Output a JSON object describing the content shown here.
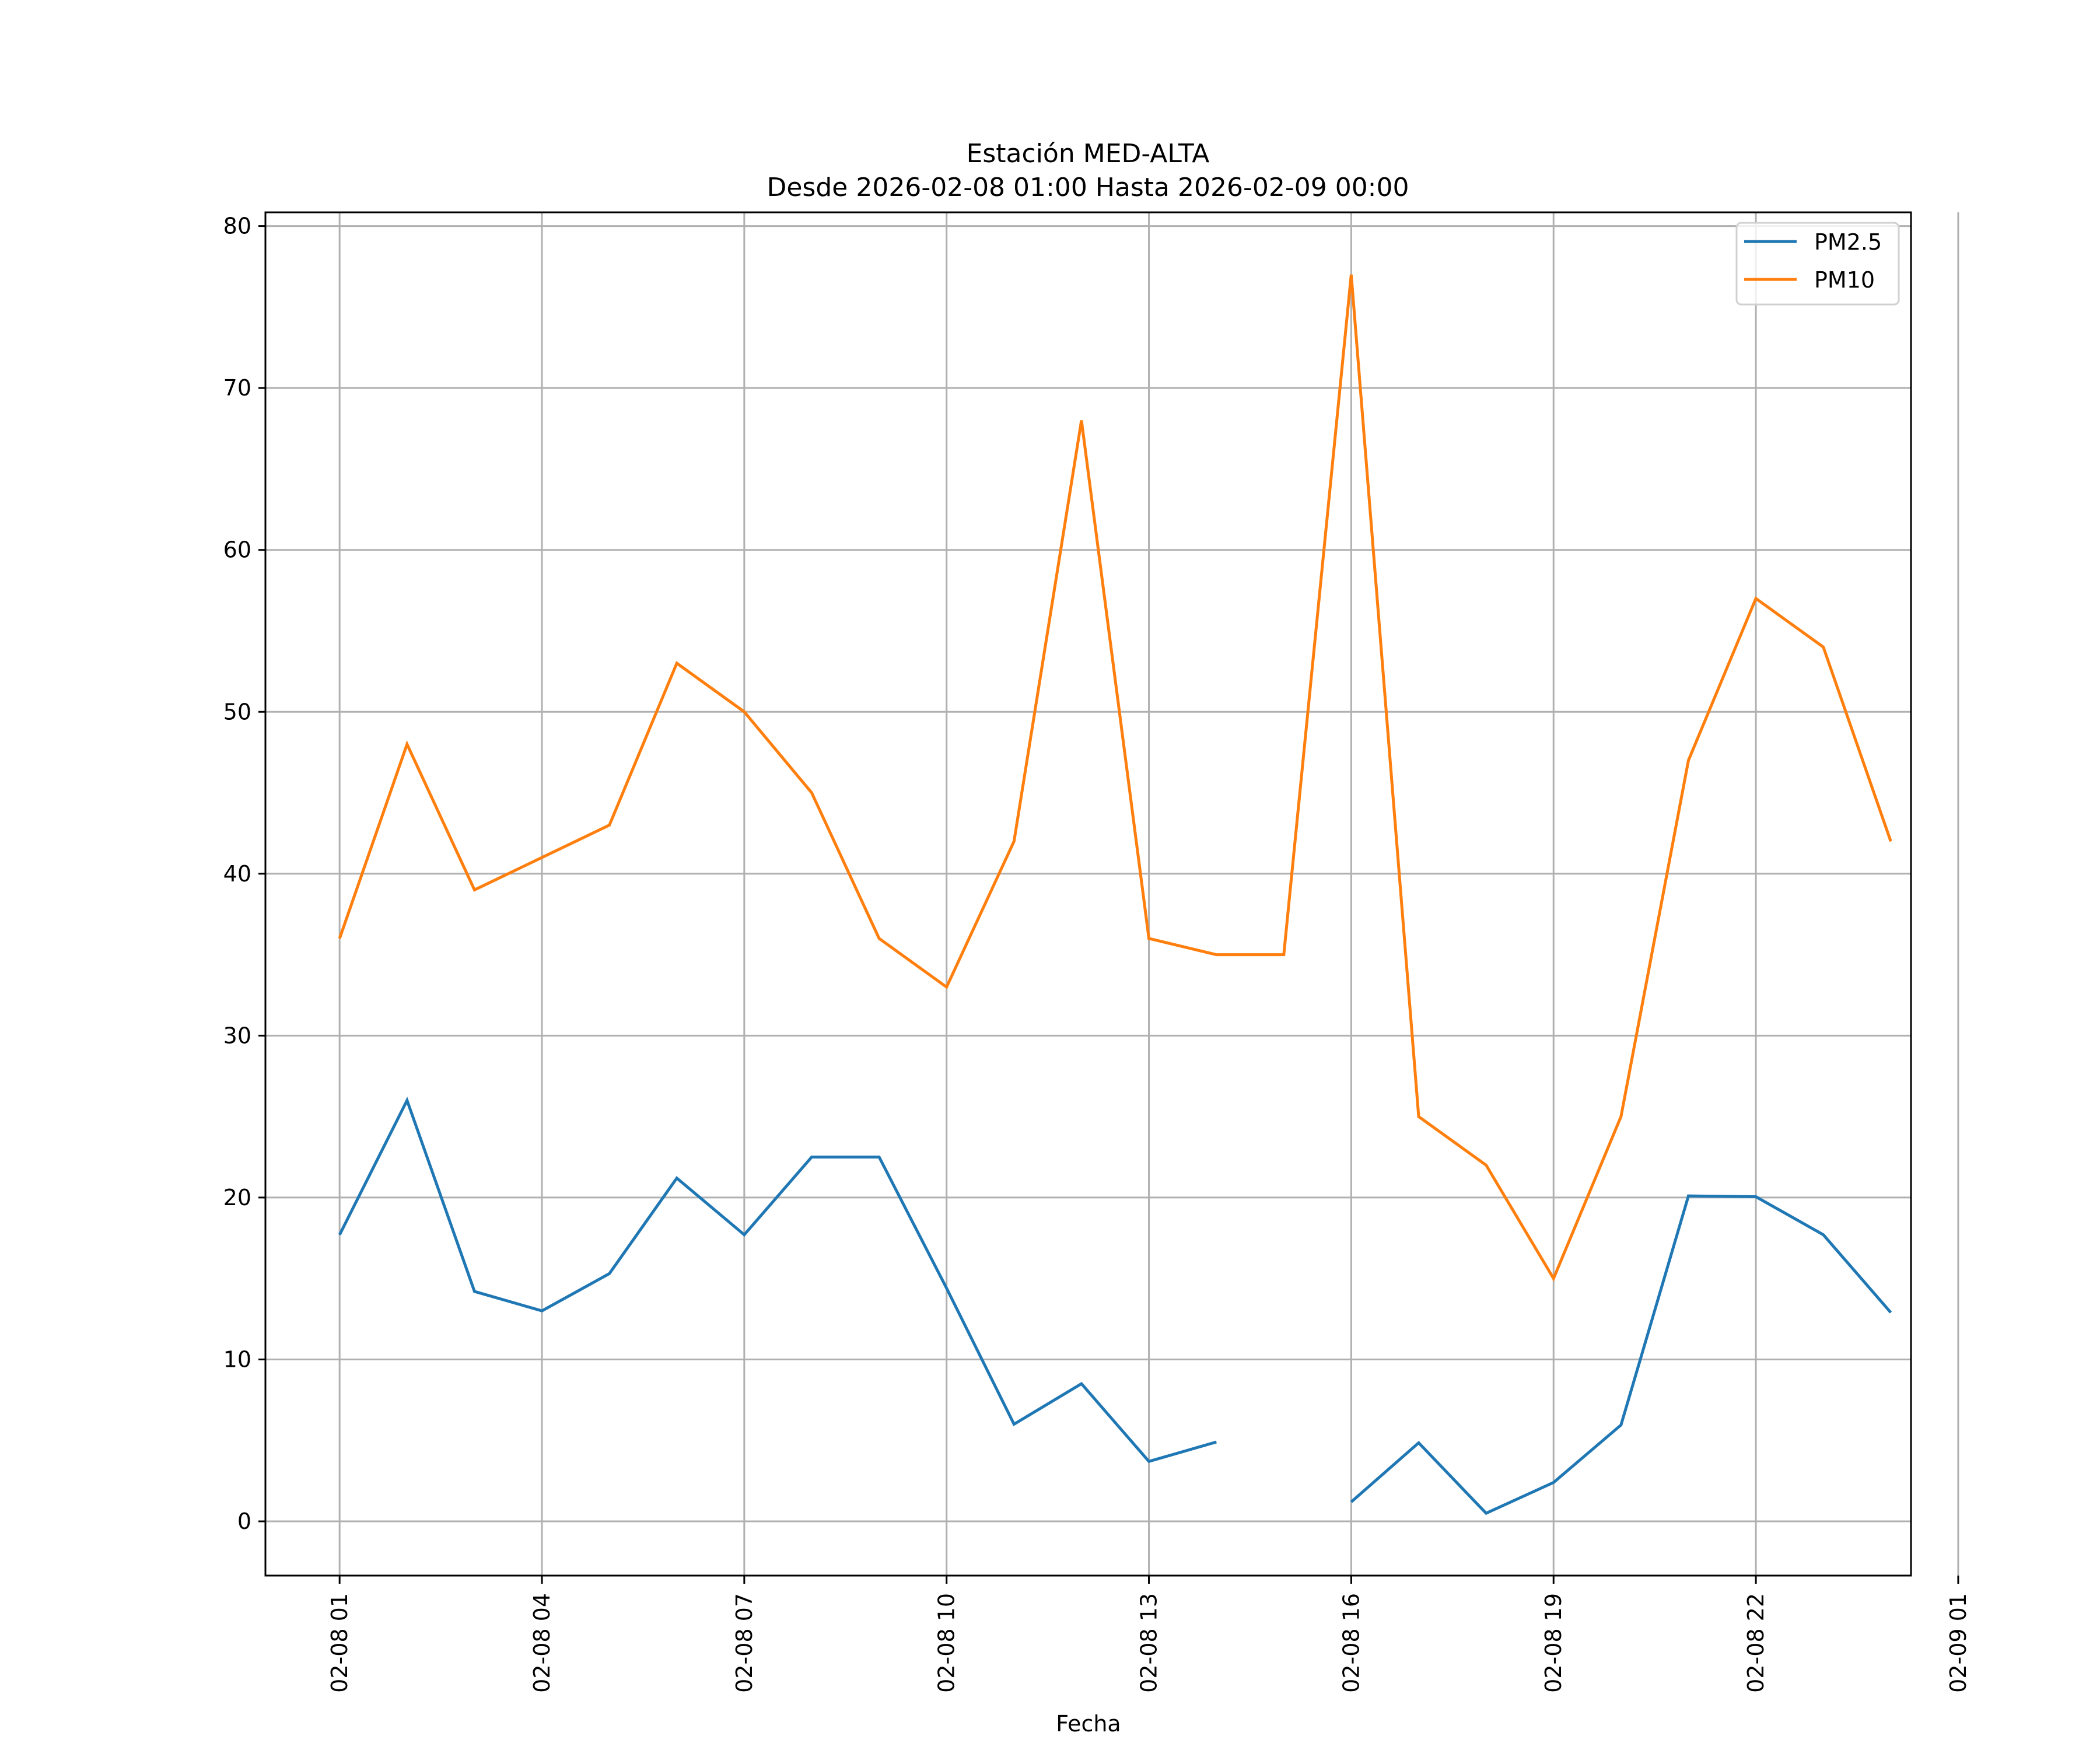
{
  "chart_data": {
    "type": "line",
    "title": "Estación MED-ALTA",
    "subtitle": "Desde 2026-02-08 01:00 Hasta 2026-02-09 00:00",
    "xlabel": "Fecha",
    "ylabel": "",
    "x": [
      "02-08 01",
      "02-08 02",
      "02-08 03",
      "02-08 04",
      "02-08 05",
      "02-08 06",
      "02-08 07",
      "02-08 08",
      "02-08 09",
      "02-08 10",
      "02-08 11",
      "02-08 12",
      "02-08 13",
      "02-08 14",
      "02-08 15",
      "02-08 16",
      "02-08 17",
      "02-08 18",
      "02-08 19",
      "02-08 20",
      "02-08 21",
      "02-08 22",
      "02-08 23",
      "02-09 00"
    ],
    "x_hours": [
      1,
      2,
      3,
      4,
      5,
      6,
      7,
      8,
      9,
      10,
      11,
      12,
      13,
      14,
      15,
      16,
      17,
      18,
      19,
      20,
      21,
      22,
      23,
      24
    ],
    "xlim_hours": [
      -0.1,
      24.3
    ],
    "x_ticks": [
      {
        "hour": 1,
        "label": "02-08 01"
      },
      {
        "hour": 4,
        "label": "02-08 04"
      },
      {
        "hour": 7,
        "label": "02-08 07"
      },
      {
        "hour": 10,
        "label": "02-08 10"
      },
      {
        "hour": 13,
        "label": "02-08 13"
      },
      {
        "hour": 16,
        "label": "02-08 16"
      },
      {
        "hour": 19,
        "label": "02-08 19"
      },
      {
        "hour": 22,
        "label": "02-08 22"
      },
      {
        "hour": 25,
        "label": "02-09 01"
      }
    ],
    "ylim": [
      -3.35,
      80.85
    ],
    "y_ticks": [
      0,
      10,
      20,
      30,
      40,
      50,
      60,
      70,
      80
    ],
    "y_tick_labels": [
      "0",
      "10",
      "20",
      "30",
      "40",
      "50",
      "60",
      "70",
      "80"
    ],
    "grid": true,
    "legend_position": "top-right",
    "series": [
      {
        "name": "PM2.5",
        "color": "#1f77b4",
        "values": [
          17.7,
          26.0,
          14.2,
          13.0,
          15.3,
          21.2,
          17.7,
          22.5,
          22.5,
          14.4,
          6.0,
          8.5,
          3.7,
          4.9,
          null,
          1.2,
          4.85,
          0.5,
          2.4,
          5.95,
          20.1,
          20.05,
          17.7,
          12.9
        ]
      },
      {
        "name": "PM10",
        "color": "#ff7f0e",
        "values": [
          36,
          48,
          39,
          41,
          43,
          53,
          50,
          45,
          36,
          33,
          42,
          68,
          36,
          35,
          35,
          77,
          25,
          22,
          15,
          25,
          47,
          57,
          54,
          42
        ]
      }
    ]
  }
}
